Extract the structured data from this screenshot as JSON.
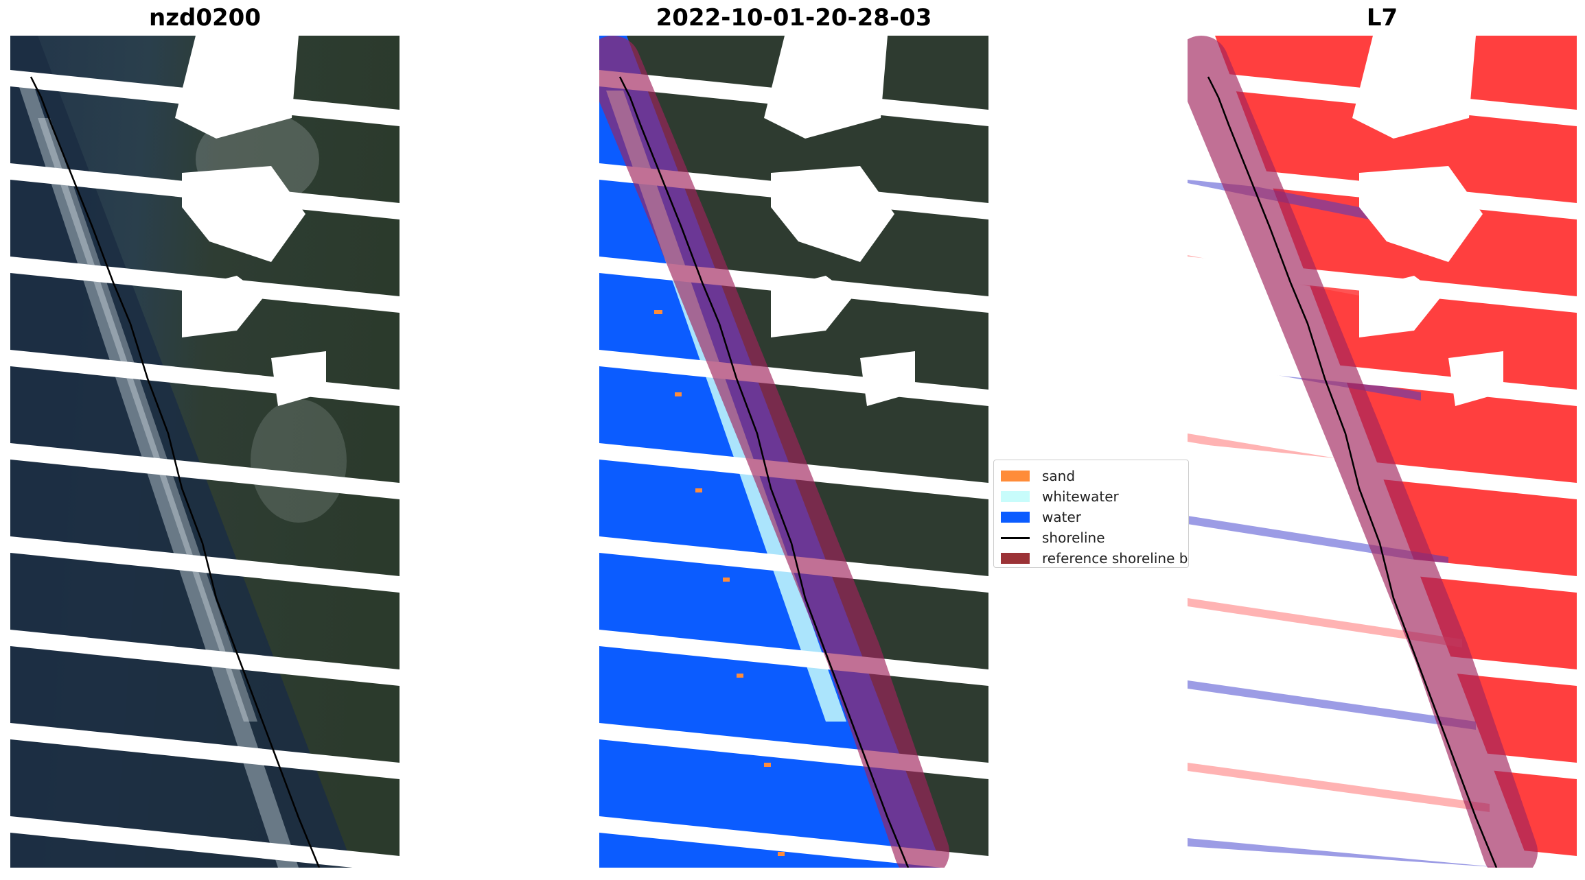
{
  "panels": [
    {
      "title": "nzd0200"
    },
    {
      "title": "2022-10-01-20-28-03"
    },
    {
      "title": "L7"
    }
  ],
  "legend": {
    "items": [
      {
        "label": "sand",
        "color": "#ff8c39"
      },
      {
        "label": "whitewater",
        "color": "#c8fcfb"
      },
      {
        "label": "water",
        "color": "#0b5cff"
      },
      {
        "label": "shoreline",
        "color": "#000000"
      },
      {
        "label": "reference shoreline buffer",
        "color": "#9b3236"
      }
    ]
  },
  "colors": {
    "land": "#2e3b30",
    "ocean": "#1f3047",
    "buffer": "#a0245c",
    "class_red": "#ff1d1d",
    "class_blue": "#3c3ccc"
  }
}
